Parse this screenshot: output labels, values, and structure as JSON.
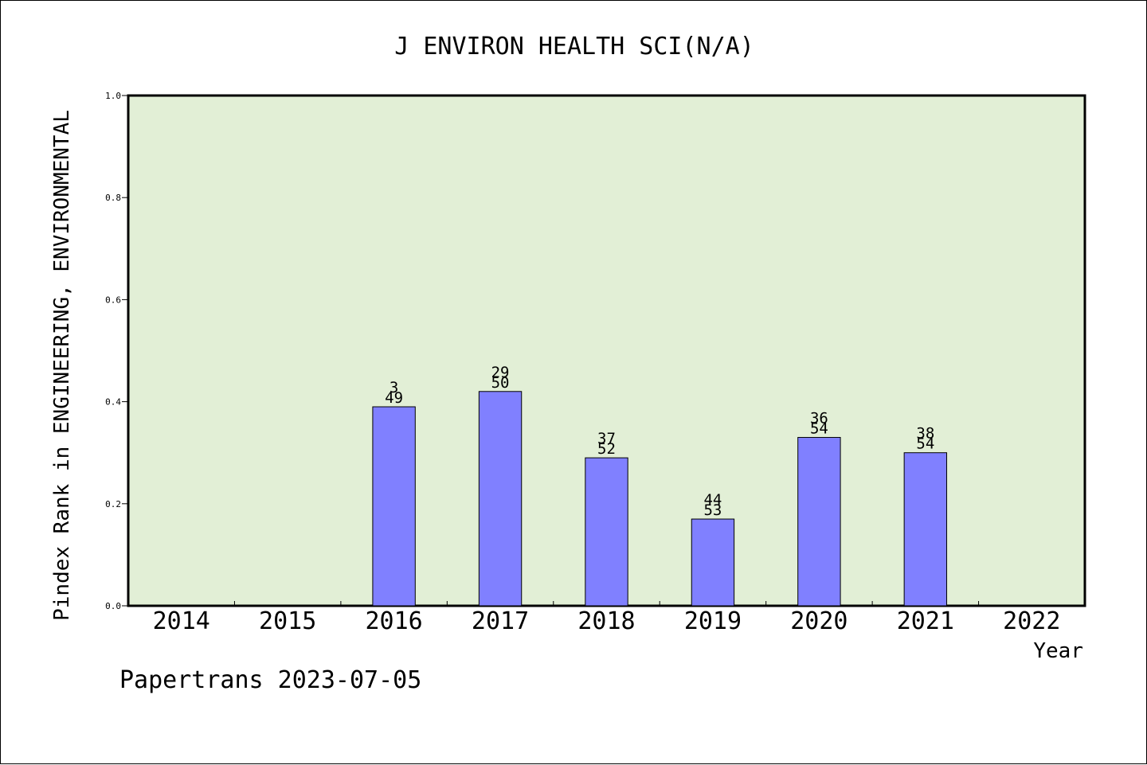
{
  "chart_data": {
    "type": "bar",
    "title": "J ENVIRON HEALTH SCI(N/A)",
    "xlabel": "Year",
    "ylabel": "Pindex Rank in ENGINEERING, ENVIRONMENTAL",
    "ylim": [
      0,
      1.0
    ],
    "yticks": [
      "0.0",
      "0.2",
      "0.4",
      "0.6",
      "0.8",
      "1.0"
    ],
    "categories": [
      "2014",
      "2015",
      "2016",
      "2017",
      "2018",
      "2019",
      "2020",
      "2021",
      "2022"
    ],
    "values": [
      null,
      null,
      0.39,
      0.42,
      0.29,
      0.17,
      0.33,
      0.3,
      null
    ],
    "labels": [
      null,
      null,
      {
        "rank": "3",
        "total": "49"
      },
      {
        "rank": "29",
        "total": "50"
      },
      {
        "rank": "37",
        "total": "52"
      },
      {
        "rank": "44",
        "total": "53"
      },
      {
        "rank": "36",
        "total": "54"
      },
      {
        "rank": "38",
        "total": "54"
      },
      null
    ],
    "grid": false,
    "colors": {
      "plot_background": "#e2efd6",
      "bar_fill": "#8080ff",
      "bar_stroke": "#000000"
    }
  },
  "footer": "Papertrans 2023-07-05"
}
